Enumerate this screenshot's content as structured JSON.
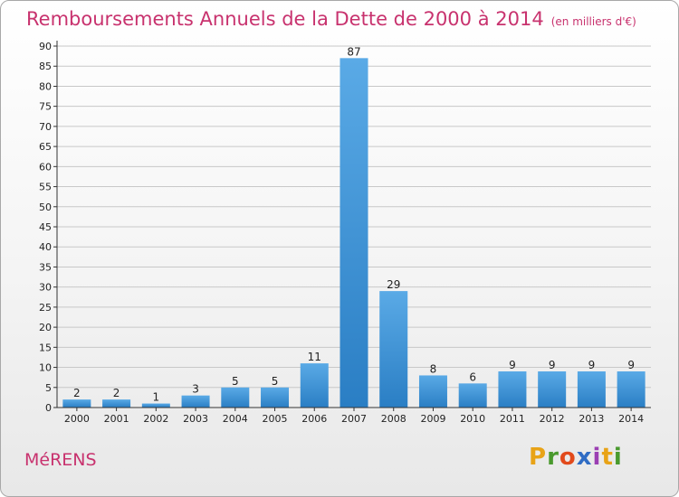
{
  "title": "Remboursements Annuels de la Dette de 2000 à 2014",
  "unit_note": "(en milliers d'€)",
  "commune": "MéRENS",
  "logo": {
    "text": "Proxiti",
    "letter_colors": [
      "#e8a317",
      "#4a9a2e",
      "#e24a1c",
      "#2f6cc4",
      "#9b3fb3",
      "#e8a317",
      "#4a9a2e"
    ]
  },
  "colors": {
    "title": "#c8326e",
    "bar_top": "#5aaae6",
    "bar_bottom": "#2a7ec4",
    "grid": "#c8c8c8"
  },
  "chart_data": {
    "type": "bar",
    "categories": [
      "2000",
      "2001",
      "2002",
      "2003",
      "2004",
      "2005",
      "2006",
      "2007",
      "2008",
      "2009",
      "2010",
      "2011",
      "2012",
      "2013",
      "2014"
    ],
    "values": [
      2,
      2,
      1,
      3,
      5,
      5,
      11,
      87,
      29,
      8,
      6,
      9,
      9,
      9,
      9
    ],
    "yticks": [
      0,
      5,
      10,
      15,
      20,
      25,
      30,
      35,
      40,
      45,
      50,
      55,
      60,
      65,
      70,
      75,
      80,
      85,
      90
    ],
    "ylim": [
      0,
      90
    ],
    "grid": true
  }
}
